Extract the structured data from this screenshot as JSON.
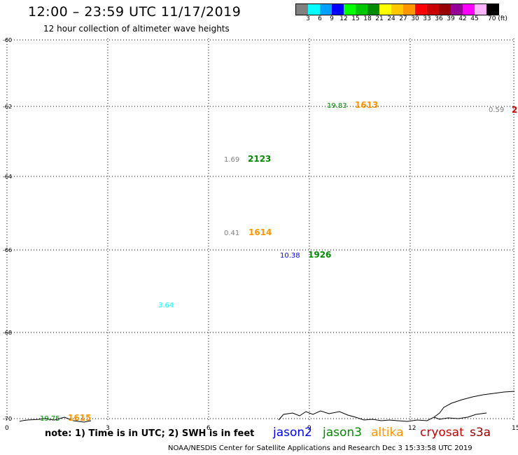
{
  "title": "12:00 – 23:59 UTC 11/17/2019",
  "subtitle": "12 hour collection of altimeter wave heights",
  "colorbar": {
    "colors": [
      "#808080",
      "#00ffff",
      "#00a0ff",
      "#0000ff",
      "#00ff00",
      "#00c800",
      "#008c00",
      "#ffff00",
      "#ffc800",
      "#ff9600",
      "#ff0000",
      "#c80000",
      "#960000",
      "#960096",
      "#ff00ff",
      "#ffb4ff",
      "#000000"
    ],
    "tick_labels": [
      "3",
      "6",
      "9",
      "12",
      "15",
      "18",
      "21",
      "24",
      "27",
      "30",
      "33",
      "36",
      "39",
      "42",
      "45",
      "70 (ft)"
    ]
  },
  "y_labels": [
    "-60",
    "-62",
    "-64",
    "-66",
    "-68",
    "-70"
  ],
  "x_labels": [
    "0",
    "3",
    "6",
    "9",
    "12",
    "15"
  ],
  "observations": [
    {
      "swh": "19.83",
      "time": "1613",
      "swh_color": "#008c00",
      "time_color": "#ff9600"
    },
    {
      "swh": "0.59",
      "time": "2",
      "swh_color": "#808080",
      "time_color": "#c80000"
    },
    {
      "swh": "1.69",
      "time": "2123",
      "swh_color": "#808080",
      "time_color": "#008c00"
    },
    {
      "swh": "0.41",
      "time": "1614",
      "swh_color": "#808080",
      "time_color": "#ff9600"
    },
    {
      "swh": "10.38",
      "time": "1926",
      "swh_color": "#0000ff",
      "time_color": "#008c00"
    },
    {
      "swh": "3.64",
      "time": "",
      "swh_color": "#00ffff",
      "time_color": "#000000"
    },
    {
      "swh": "19.75",
      "time": "1615",
      "swh_color": "#008c00",
      "time_color": "#ff9600"
    }
  ],
  "note": "note: 1) Time is in UTC; 2) SWH is in feet",
  "satellites": [
    {
      "name": "jason2",
      "color": "#0000ff"
    },
    {
      "name": "jason3",
      "color": "#008c00"
    },
    {
      "name": "altika",
      "color": "#ff9600"
    },
    {
      "name": "cryosat",
      "color": "#c80000"
    },
    {
      "name": "s3a",
      "color": "#960000"
    }
  ],
  "footer": "NOAA/NESDIS Center for Satellite Applications and Research    Dec  3 15:33:58 UTC 2019"
}
